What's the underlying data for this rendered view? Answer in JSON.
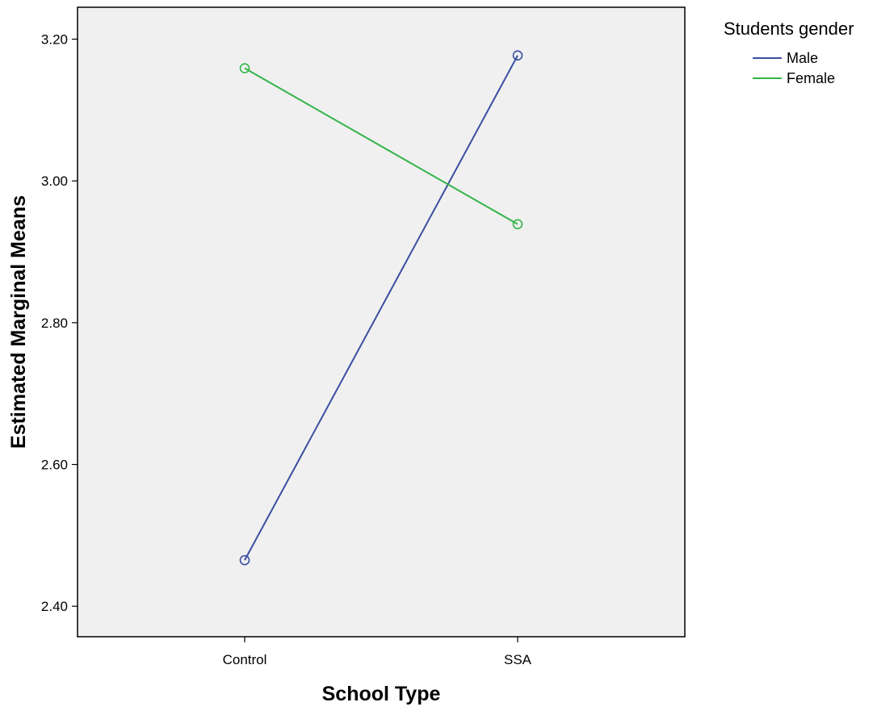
{
  "chart_data": {
    "type": "line",
    "title": "",
    "xlabel": "School Type",
    "ylabel": "Estimated Marginal Means",
    "categories": [
      "Control",
      "SSA"
    ],
    "ylim": [
      2.357,
      3.245
    ],
    "yticks": [
      "2.40",
      "2.60",
      "2.80",
      "3.00",
      "3.20"
    ],
    "grid": false,
    "legend_title": "Students gender",
    "legend_position": "top-right",
    "marker": "circle",
    "series": [
      {
        "name": "Male",
        "color": "#3a4ea0",
        "values": [
          2.465,
          3.177
        ]
      },
      {
        "name": "Female",
        "color": "#34b44a",
        "values": [
          3.159,
          2.939
        ]
      }
    ]
  }
}
